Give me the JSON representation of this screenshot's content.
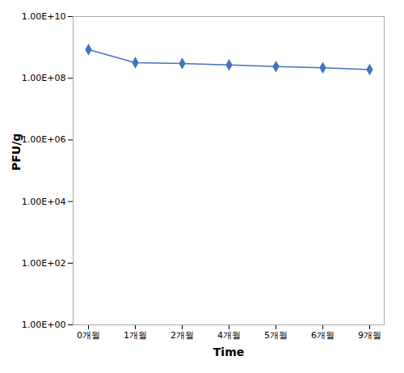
{
  "chart_data": {
    "type": "line",
    "xlabel": "Time",
    "ylabel": "PFU/g",
    "categories": [
      "0개월",
      "1개월",
      "2개월",
      "4개월",
      "5개월",
      "6개월",
      "9개월"
    ],
    "values": [
      850000000.0,
      320000000.0,
      300000000.0,
      270000000.0,
      240000000.0,
      220000000.0,
      190000000.0
    ],
    "color": "#4472C4",
    "marker": "diamond",
    "log": "y",
    "grid": false,
    "ylim": [
      1,
      10000000000.0
    ],
    "yticks": [
      {
        "value": 1,
        "label": "1.00E+00"
      },
      {
        "value": 100,
        "label": "1.00E+02"
      },
      {
        "value": 10000,
        "label": "1.00E+04"
      },
      {
        "value": 1000000,
        "label": "1.00E+06"
      },
      {
        "value": 100000000,
        "label": "1.00E+08"
      },
      {
        "value": 10000000000,
        "label": "1.00E+10"
      }
    ]
  }
}
